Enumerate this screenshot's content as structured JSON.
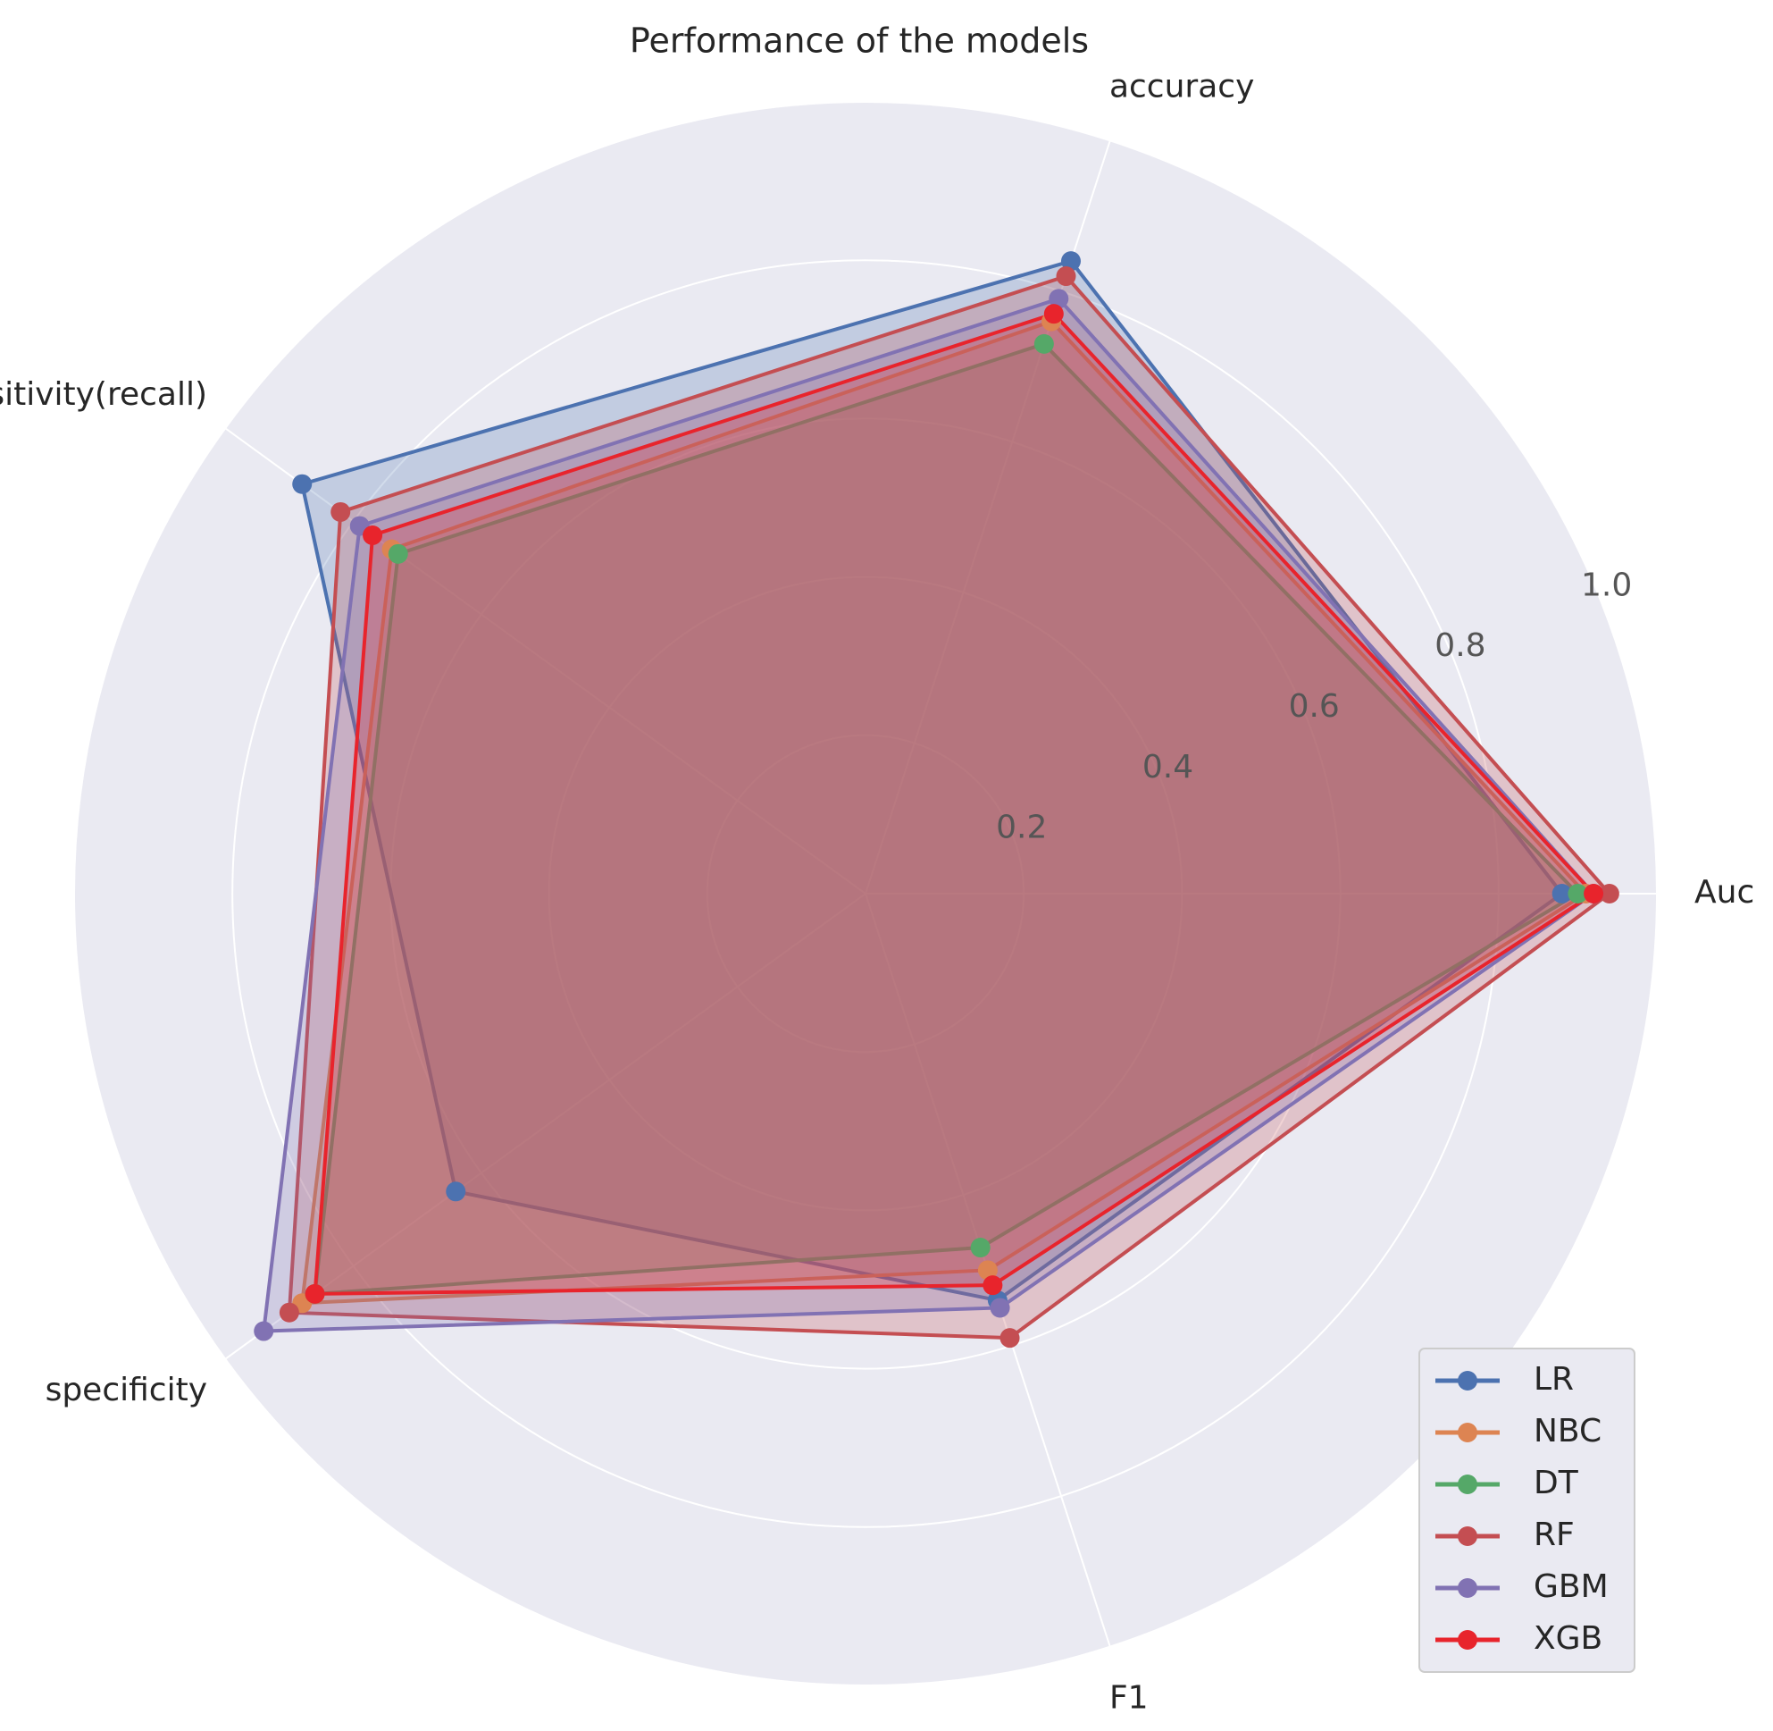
{
  "chart_data": {
    "type": "radar",
    "title": "Performance of the models",
    "categories": [
      "Auc",
      "accuracy",
      "sensitivity(recall)",
      "specificity",
      "F1"
    ],
    "series": [
      {
        "name": "LR",
        "color": "#4c72b0",
        "values": [
          0.88,
          0.84,
          0.88,
          0.64,
          0.54
        ]
      },
      {
        "name": "NBC",
        "color": "#dd8452",
        "values": [
          0.91,
          0.76,
          0.74,
          0.88,
          0.5
        ]
      },
      {
        "name": "DT",
        "color": "#55a868",
        "values": [
          0.9,
          0.73,
          0.73,
          0.86,
          0.47
        ]
      },
      {
        "name": "RF",
        "color": "#c44e52",
        "values": [
          0.94,
          0.82,
          0.82,
          0.9,
          0.59
        ]
      },
      {
        "name": "GBM",
        "color": "#8172b3",
        "values": [
          0.92,
          0.79,
          0.79,
          0.94,
          0.55
        ]
      },
      {
        "name": "XGB",
        "color": "#e8242c",
        "values": [
          0.92,
          0.77,
          0.77,
          0.86,
          0.52
        ]
      }
    ],
    "ylim": [
      0,
      1.0
    ],
    "yticks": [
      0.2,
      0.4,
      0.6,
      0.8,
      {
        "value": 1.0,
        "label": "1.0"
      }
    ],
    "grid": true,
    "legend": "lower right"
  }
}
